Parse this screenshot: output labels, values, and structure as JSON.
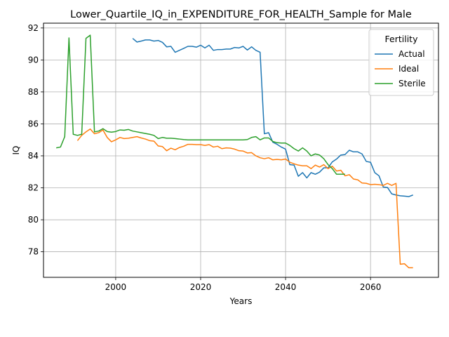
{
  "chart_data": {
    "type": "line",
    "title": "Lower_Quartile_IQ_in_EXPENDITURE_FOR_HEALTH_Sample for Male",
    "xlabel": "Years",
    "ylabel": "IQ",
    "xlim": [
      1983,
      2076
    ],
    "ylim": [
      76.4,
      92.3
    ],
    "xticks": [
      2000,
      2020,
      2040,
      2060
    ],
    "yticks": [
      78,
      80,
      82,
      84,
      86,
      88,
      90,
      92
    ],
    "grid": true,
    "legend": {
      "title": "Fertility",
      "placement": "top-right"
    },
    "series": [
      {
        "name": "Actual",
        "color": "#1f77b4",
        "x": [
          2004,
          2005,
          2006,
          2007,
          2008,
          2009,
          2010,
          2011,
          2012,
          2013,
          2014,
          2015,
          2016,
          2017,
          2018,
          2019,
          2020,
          2021,
          2022,
          2023,
          2024,
          2025,
          2026,
          2027,
          2028,
          2029,
          2030,
          2031,
          2032,
          2033,
          2034,
          2035,
          2036,
          2037,
          2038,
          2039,
          2040,
          2041,
          2042,
          2043,
          2044,
          2045,
          2046,
          2047,
          2048,
          2049,
          2050,
          2051,
          2052,
          2053,
          2054,
          2055,
          2056,
          2057,
          2058,
          2059,
          2060,
          2061,
          2062,
          2063,
          2064,
          2065,
          2066,
          2067,
          2068,
          2069,
          2070
        ],
        "y": [
          91.35,
          91.12,
          91.18,
          91.25,
          91.25,
          91.18,
          91.22,
          91.1,
          90.82,
          90.85,
          90.48,
          90.6,
          90.72,
          90.85,
          90.85,
          90.8,
          90.92,
          90.75,
          90.92,
          90.6,
          90.65,
          90.65,
          90.68,
          90.68,
          90.78,
          90.75,
          90.85,
          90.62,
          90.82,
          90.6,
          90.48,
          85.38,
          85.45,
          84.85,
          84.72,
          84.55,
          84.42,
          83.45,
          83.42,
          82.72,
          82.95,
          82.62,
          82.95,
          82.85,
          82.98,
          83.25,
          83.25,
          83.62,
          83.8,
          84.05,
          84.08,
          84.35,
          84.25,
          84.25,
          84.12,
          83.65,
          83.6,
          82.95,
          82.75,
          82.05,
          82.02,
          81.62,
          81.55,
          81.5,
          81.48,
          81.45,
          81.55
        ]
      },
      {
        "name": "Ideal",
        "color": "#ff7f0e",
        "x": [
          1991,
          1992,
          1993,
          1994,
          1995,
          1996,
          1997,
          1998,
          1999,
          2000,
          2001,
          2002,
          2003,
          2004,
          2005,
          2006,
          2007,
          2008,
          2009,
          2010,
          2011,
          2012,
          2013,
          2014,
          2015,
          2016,
          2017,
          2018,
          2019,
          2020,
          2021,
          2022,
          2023,
          2024,
          2025,
          2026,
          2027,
          2028,
          2029,
          2030,
          2031,
          2032,
          2033,
          2034,
          2035,
          2036,
          2037,
          2038,
          2039,
          2040,
          2041,
          2042,
          2043,
          2044,
          2045,
          2046,
          2047,
          2048,
          2049,
          2050,
          2051,
          2052,
          2053,
          2054,
          2055,
          2056,
          2057,
          2058,
          2059,
          2060,
          2061,
          2062,
          2063,
          2064,
          2065,
          2066,
          2067,
          2068,
          2069,
          2070
        ],
        "y": [
          84.95,
          85.28,
          85.5,
          85.68,
          85.38,
          85.45,
          85.62,
          85.15,
          84.88,
          85.0,
          85.15,
          85.08,
          85.1,
          85.15,
          85.2,
          85.12,
          85.05,
          84.95,
          84.92,
          84.62,
          84.58,
          84.32,
          84.48,
          84.38,
          84.52,
          84.6,
          84.72,
          84.72,
          84.7,
          84.7,
          84.65,
          84.7,
          84.55,
          84.6,
          84.45,
          84.5,
          84.48,
          84.42,
          84.32,
          84.3,
          84.18,
          84.2,
          84.0,
          83.88,
          83.82,
          83.88,
          83.75,
          83.78,
          83.75,
          83.8,
          83.6,
          83.5,
          83.42,
          83.38,
          83.38,
          83.2,
          83.42,
          83.3,
          83.45,
          83.2,
          83.35,
          83.05,
          83.1,
          82.75,
          82.82,
          82.55,
          82.5,
          82.3,
          82.28,
          82.2,
          82.22,
          82.2,
          82.15,
          82.28,
          82.15,
          82.28,
          77.22,
          77.25,
          77.0,
          77.0
        ]
      },
      {
        "name": "Sterile",
        "color": "#2ca02c",
        "x": [
          1986,
          1987,
          1988,
          1989,
          1990,
          1991,
          1992,
          1993,
          1994,
          1995,
          1996,
          1997,
          1998,
          1999,
          2000,
          2001,
          2002,
          2003,
          2004,
          2005,
          2006,
          2007,
          2008,
          2009,
          2010,
          2011,
          2012,
          2013,
          2014,
          2015,
          2016,
          2017,
          2018,
          2019,
          2020,
          2021,
          2022,
          2023,
          2024,
          2025,
          2026,
          2027,
          2028,
          2029,
          2030,
          2031,
          2032,
          2033,
          2034,
          2035,
          2036,
          2037,
          2038,
          2039,
          2040,
          2041,
          2042,
          2043,
          2044,
          2045,
          2046,
          2047,
          2048,
          2049,
          2050,
          2051,
          2052,
          2053,
          2054
        ],
        "y": [
          84.5,
          84.55,
          85.2,
          91.38,
          85.35,
          85.28,
          85.35,
          91.35,
          91.55,
          85.5,
          85.55,
          85.7,
          85.52,
          85.48,
          85.52,
          85.62,
          85.6,
          85.65,
          85.55,
          85.5,
          85.45,
          85.4,
          85.35,
          85.28,
          85.08,
          85.15,
          85.1,
          85.1,
          85.08,
          85.05,
          85.02,
          85.0,
          85.0,
          85.0,
          85.0,
          85.0,
          85.0,
          85.0,
          85.0,
          85.0,
          85.0,
          85.0,
          85.0,
          85.0,
          85.0,
          85.02,
          85.15,
          85.2,
          85.0,
          85.12,
          85.12,
          84.9,
          84.82,
          84.8,
          84.8,
          84.65,
          84.45,
          84.3,
          84.5,
          84.3,
          84.0,
          84.12,
          84.05,
          83.82,
          83.45,
          83.2,
          82.85,
          82.85,
          82.85
        ]
      }
    ]
  }
}
